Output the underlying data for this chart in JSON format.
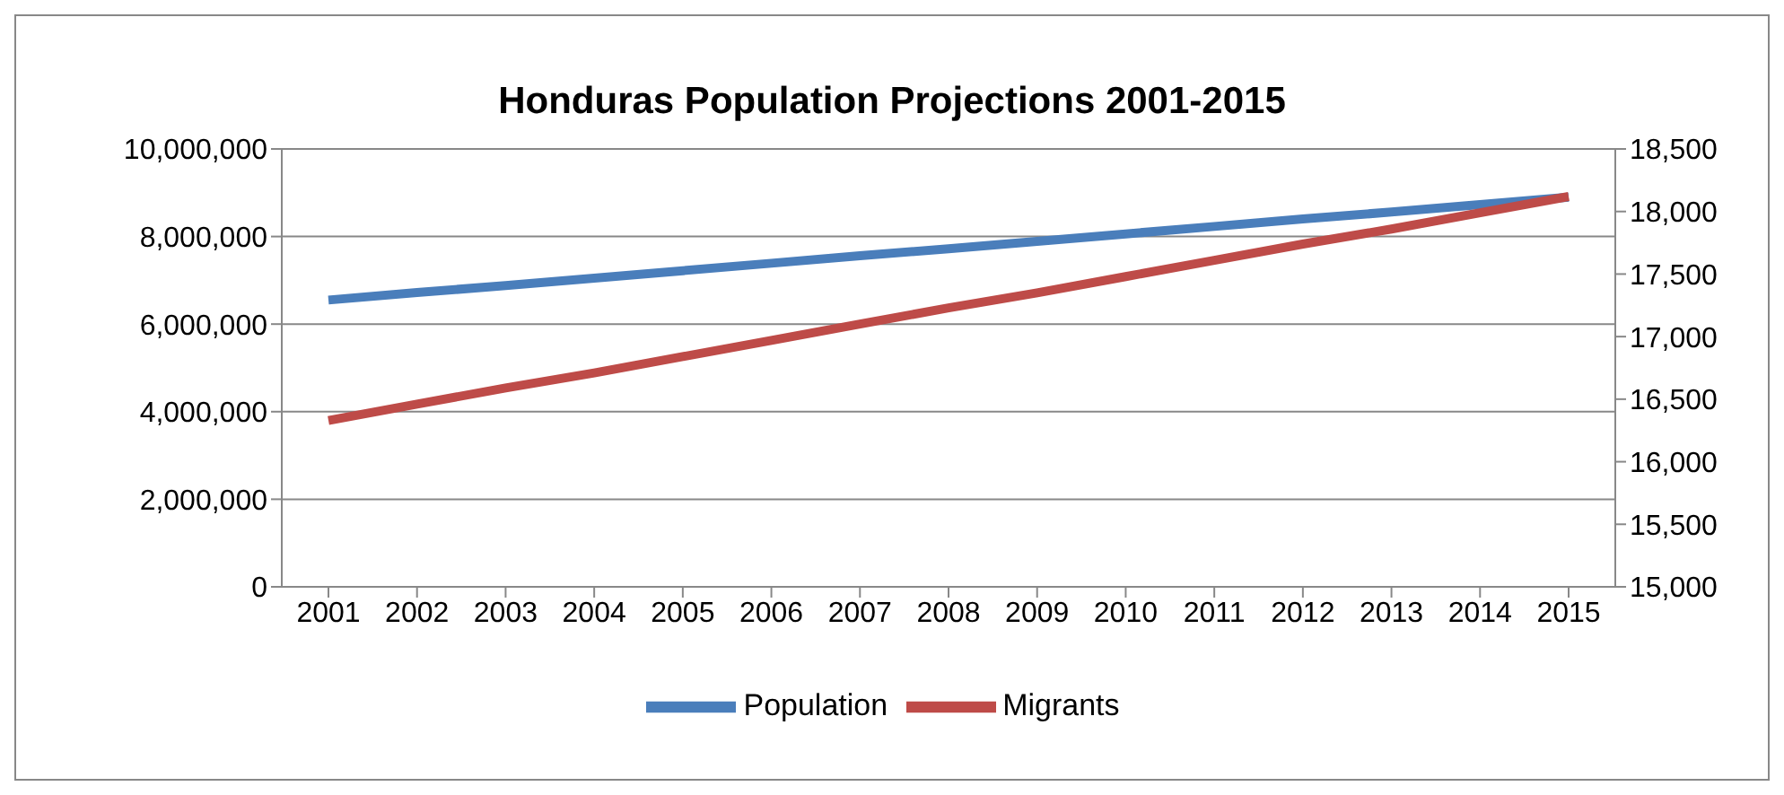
{
  "chart_data": {
    "type": "line",
    "title": "Honduras Population Projections 2001-2015",
    "categories": [
      "2001",
      "2002",
      "2003",
      "2004",
      "2005",
      "2006",
      "2007",
      "2008",
      "2009",
      "2010",
      "2011",
      "2012",
      "2013",
      "2014",
      "2015"
    ],
    "series": [
      {
        "name": "Population",
        "color": "#4a7ebb",
        "values": [
          6550000,
          6720000,
          6880000,
          7050000,
          7220000,
          7390000,
          7560000,
          7720000,
          7890000,
          8060000,
          8230000,
          8400000,
          8560000,
          8730000,
          8900000
        ]
      },
      {
        "name": "Migrants",
        "color": "#be4b48",
        "axis": "y2",
        "values": [
          16330,
          16460,
          16590,
          16710,
          16840,
          16970,
          17100,
          17230,
          17350,
          17480,
          17610,
          17740,
          17860,
          17990,
          18120
        ]
      }
    ],
    "ylim": [
      0,
      10000000
    ],
    "yticks": [
      0,
      {
        "value": 2000000,
        "label": "2,000,000"
      },
      {
        "value": 4000000,
        "label": "4,000,000"
      },
      {
        "value": 6000000,
        "label": "6,000,000"
      },
      {
        "value": 8000000,
        "label": "8,000,000"
      },
      {
        "value": 10000000,
        "label": "10,000,000"
      }
    ],
    "y2lim": [
      15000,
      18500
    ],
    "y2ticks": [
      {
        "value": 15000,
        "label": "15,000"
      },
      {
        "value": 15500,
        "label": "15,500"
      },
      {
        "value": 16000,
        "label": "16,000"
      },
      {
        "value": 16500,
        "label": "16,500"
      },
      {
        "value": 17000,
        "label": "17,000"
      },
      {
        "value": 17500,
        "label": "17,500"
      },
      {
        "value": 18000,
        "label": "18,000"
      },
      {
        "value": 18500,
        "label": "18,500"
      }
    ],
    "grid": "y",
    "legend": "bottom",
    "marker": "none",
    "line_style": "solid"
  }
}
